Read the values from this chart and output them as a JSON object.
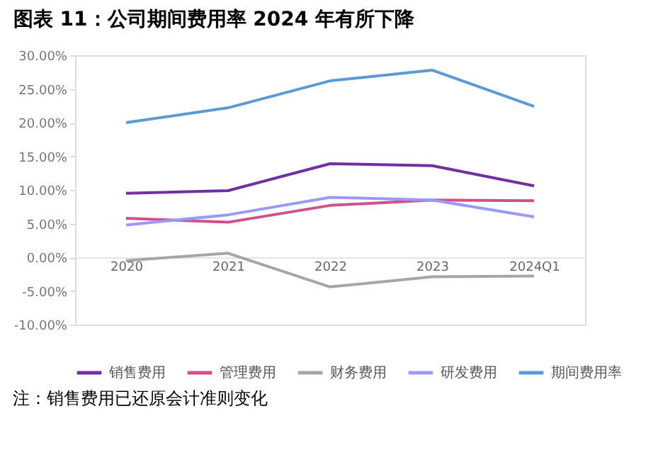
{
  "chart_data": {
    "type": "line",
    "title": "图表 11：公司期间费用率 2024 年有所下降",
    "categories": [
      "2020",
      "2021",
      "2022",
      "2023",
      "2024Q1"
    ],
    "series": [
      {
        "name": "销售费用",
        "color": "#7030a0",
        "values": [
          9.5,
          9.9,
          13.9,
          13.6,
          10.6
        ]
      },
      {
        "name": "管理费用",
        "color": "#d0508a",
        "values": [
          5.8,
          5.2,
          7.7,
          8.5,
          8.4
        ]
      },
      {
        "name": "财务费用",
        "color": "#a6a6a6",
        "values": [
          -0.5,
          0.6,
          -4.4,
          -2.9,
          -2.8
        ]
      },
      {
        "name": "研发费用",
        "color": "#9999ff",
        "values": [
          4.8,
          6.3,
          8.9,
          8.5,
          6.0
        ]
      },
      {
        "name": "期间费用率",
        "color": "#5b9bd5",
        "values": [
          20.0,
          22.2,
          26.2,
          27.8,
          22.4
        ]
      }
    ],
    "ylim": [
      -10,
      30
    ],
    "yticks": [
      {
        "value": -10,
        "label": "-10.00%"
      },
      {
        "value": -5,
        "label": "-5.00%"
      },
      {
        "value": 0,
        "label": "0.00%"
      },
      {
        "value": 5,
        "label": "5.00%"
      },
      {
        "value": 10,
        "label": "10.00%"
      },
      {
        "value": 15,
        "label": "15.00%"
      },
      {
        "value": 20,
        "label": "20.00%"
      },
      {
        "value": 25,
        "label": "25.00%"
      },
      {
        "value": 30,
        "label": "30.00%"
      }
    ],
    "grid": false,
    "legend": "bottom",
    "marker": "none",
    "line_style": "solid",
    "annotations": [
      "注：销售费用已还原会计准则变化"
    ]
  }
}
